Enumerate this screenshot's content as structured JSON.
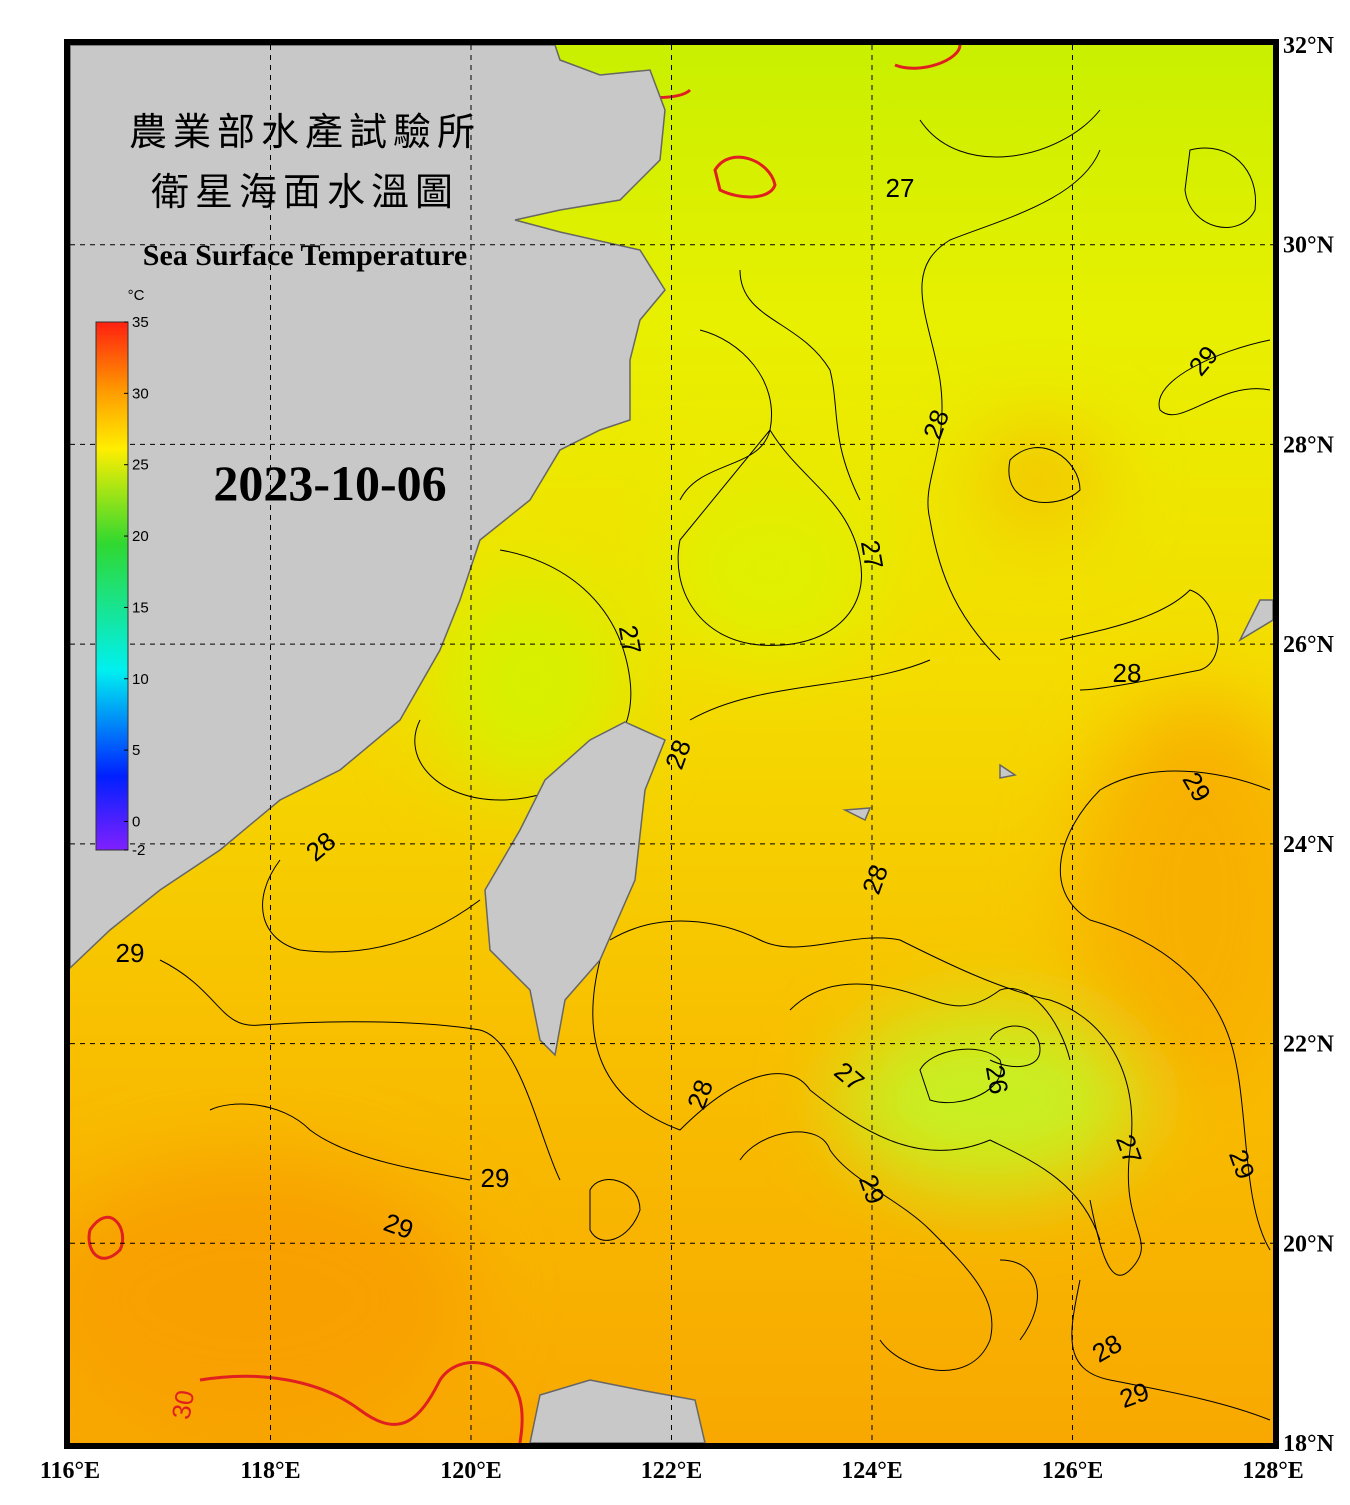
{
  "header": {
    "title_zh": "農業部水產試驗所",
    "subtitle_zh": "衛星海面水溫圖",
    "title_en": "Sea Surface Temperature"
  },
  "date": "2023-10-06",
  "colorbar": {
    "unit": "°C",
    "lim": [
      -2,
      35
    ],
    "ticks": [
      35,
      30,
      25,
      20,
      15,
      10,
      5,
      0,
      -2
    ]
  },
  "lon_ticks": [
    {
      "value": 116,
      "label": "116°E"
    },
    {
      "value": 118,
      "label": "118°E"
    },
    {
      "value": 120,
      "label": "120°E"
    },
    {
      "value": 122,
      "label": "122°E"
    },
    {
      "value": 124,
      "label": "124°E"
    },
    {
      "value": 126,
      "label": "126°E"
    },
    {
      "value": 128,
      "label": "128°E"
    }
  ],
  "lat_ticks": [
    {
      "value": 32,
      "label": "32°N"
    },
    {
      "value": 30,
      "label": "30°N"
    },
    {
      "value": 28,
      "label": "28°N"
    },
    {
      "value": 26,
      "label": "26°N"
    },
    {
      "value": 24,
      "label": "24°N"
    },
    {
      "value": 22,
      "label": "22°N"
    },
    {
      "value": 20,
      "label": "20°N"
    },
    {
      "value": 18,
      "label": "18°N"
    }
  ],
  "contour_labels": [
    "27",
    "27",
    "27",
    "28",
    "28",
    "28",
    "28",
    "28",
    "28",
    "28",
    "29",
    "29",
    "29",
    "29",
    "29",
    "29",
    "29",
    "29",
    "26",
    "27",
    "27",
    "30"
  ]
}
